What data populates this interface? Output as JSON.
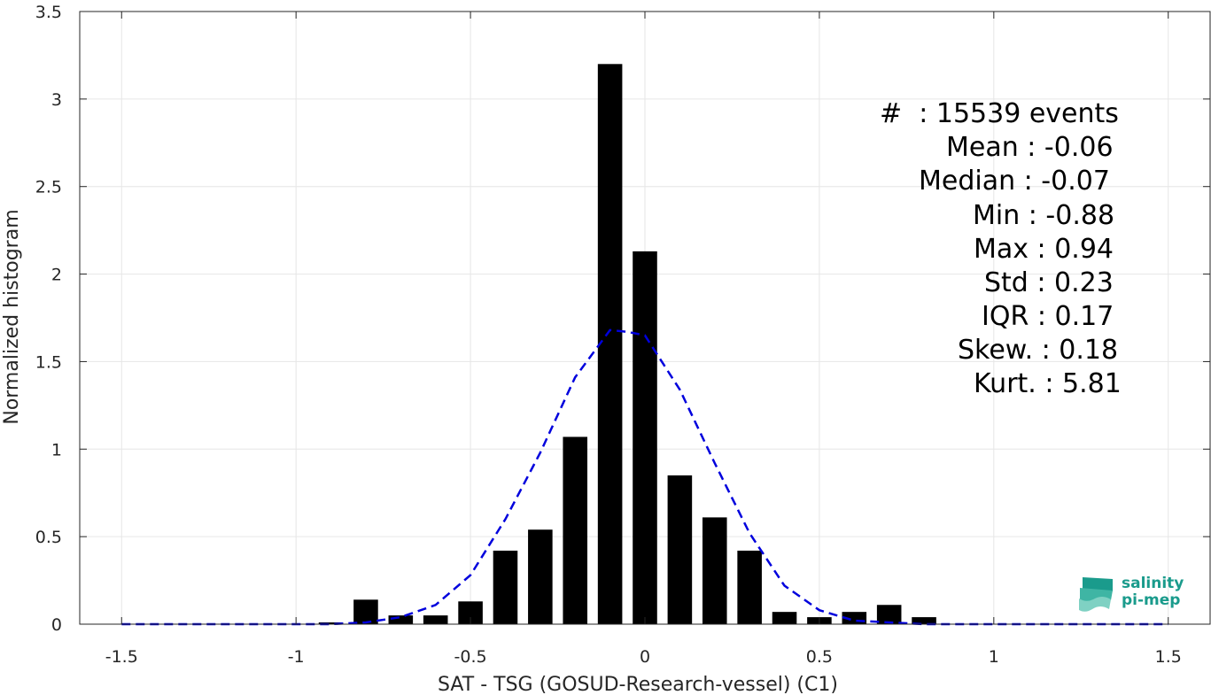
{
  "chart_data": {
    "type": "bar",
    "xlabel": "SAT - TSG (GOSUD-Research-vessel) (C1)",
    "ylabel": "Normalized histogram",
    "xlim": [
      -1.62,
      1.62
    ],
    "ylim": [
      0,
      3.5
    ],
    "xticks": [
      -1.5,
      -1,
      -0.5,
      0,
      0.5,
      1,
      1.5
    ],
    "xtick_labels": [
      "-1.5",
      "-1",
      "-0.5",
      "0",
      "0.5",
      "1",
      "1.5"
    ],
    "yticks": [
      0,
      0.5,
      1,
      1.5,
      2,
      2.5,
      3,
      3.5
    ],
    "ytick_labels": [
      "0",
      "0.5",
      "1",
      "1.5",
      "2",
      "2.5",
      "3",
      "3.5"
    ],
    "grid": true,
    "bar_width": 0.07,
    "bar_color": "#000000",
    "bars": {
      "x": [
        -0.9,
        -0.8,
        -0.7,
        -0.6,
        -0.5,
        -0.4,
        -0.3,
        -0.2,
        -0.1,
        0.0,
        0.1,
        0.2,
        0.3,
        0.4,
        0.5,
        0.6,
        0.7,
        0.8
      ],
      "values": [
        0.01,
        0.14,
        0.05,
        0.05,
        0.13,
        0.42,
        0.54,
        1.07,
        3.2,
        2.13,
        0.85,
        0.61,
        0.42,
        0.07,
        0.04,
        0.07,
        0.11,
        0.04
      ]
    },
    "fit_curve": {
      "style": "dashed",
      "color": "#0000dd",
      "x": [
        -1.5,
        -1.0,
        -0.9,
        -0.8,
        -0.7,
        -0.6,
        -0.5,
        -0.4,
        -0.3,
        -0.2,
        -0.1,
        -0.05,
        0.0,
        0.1,
        0.2,
        0.3,
        0.4,
        0.5,
        0.6,
        0.7,
        0.8,
        0.9,
        1.0,
        1.5
      ],
      "y": [
        0.0,
        0.0,
        0.0,
        0.01,
        0.04,
        0.11,
        0.28,
        0.6,
        0.98,
        1.41,
        1.68,
        1.67,
        1.65,
        1.34,
        0.92,
        0.52,
        0.22,
        0.08,
        0.02,
        0.01,
        0.0,
        0.0,
        0.0,
        0.0
      ]
    }
  },
  "stats": {
    "events": "#  : 15539 events",
    "mean": "Mean : -0.06",
    "median": "Median : -0.07",
    "min": "Min : -0.88",
    "max": "Max : 0.94",
    "std": "Std : 0.23",
    "iqr": "IQR : 0.17",
    "skew": "Skew. : 0.18",
    "kurt": "Kurt. : 5.81"
  },
  "logo": {
    "line1": "salinity",
    "line2": "pi-mep",
    "color": "#1a9b8c"
  }
}
